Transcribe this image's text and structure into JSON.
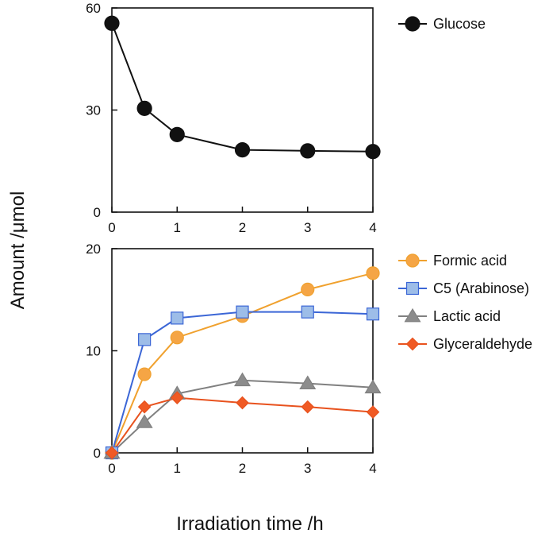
{
  "chart_data": [
    {
      "type": "line",
      "panel": "top",
      "x": [
        0,
        0.5,
        1,
        2,
        3,
        4
      ],
      "xlim": [
        0,
        4
      ],
      "ylim": [
        0,
        60
      ],
      "xticks": [
        "0",
        "1",
        "2",
        "3",
        "4"
      ],
      "yticks": [
        "0",
        "30",
        "60"
      ],
      "series": [
        {
          "name": "Glucose",
          "marker": "circle",
          "color": "#111111",
          "fill": "#111111",
          "values": [
            55.5,
            30.5,
            22.8,
            18.3,
            18.0,
            17.8
          ]
        }
      ]
    },
    {
      "type": "line",
      "panel": "bottom",
      "x": [
        0,
        0.5,
        1,
        2,
        3,
        4
      ],
      "xlim": [
        0,
        4
      ],
      "ylim": [
        0,
        20
      ],
      "xticks": [
        "0",
        "1",
        "2",
        "3",
        "4"
      ],
      "yticks": [
        "0",
        "10",
        "20"
      ],
      "series": [
        {
          "name": "Formic acid",
          "marker": "circle",
          "color": "#F0A12E",
          "fill": "#F5A545",
          "values": [
            0,
            7.7,
            11.3,
            13.4,
            16.0,
            17.6
          ]
        },
        {
          "name": "C5 (Arabinose)",
          "marker": "square",
          "color": "#3B66D6",
          "fill": "#9DBDE8",
          "values": [
            0,
            11.1,
            13.2,
            13.8,
            13.8,
            13.6
          ]
        },
        {
          "name": "Lactic acid",
          "marker": "triangle",
          "color": "#808080",
          "fill": "#8C8C8C",
          "values": [
            0,
            3.0,
            5.8,
            7.1,
            6.8,
            6.4
          ]
        },
        {
          "name": "Glyceraldehyde",
          "marker": "diamond",
          "color": "#E8521E",
          "fill": "#F05A24",
          "values": [
            0,
            4.5,
            5.4,
            4.9,
            4.5,
            4.0
          ]
        }
      ]
    }
  ],
  "axes": {
    "ylabel": "Amount /μmol",
    "xlabel": "Irradiation time /h"
  }
}
